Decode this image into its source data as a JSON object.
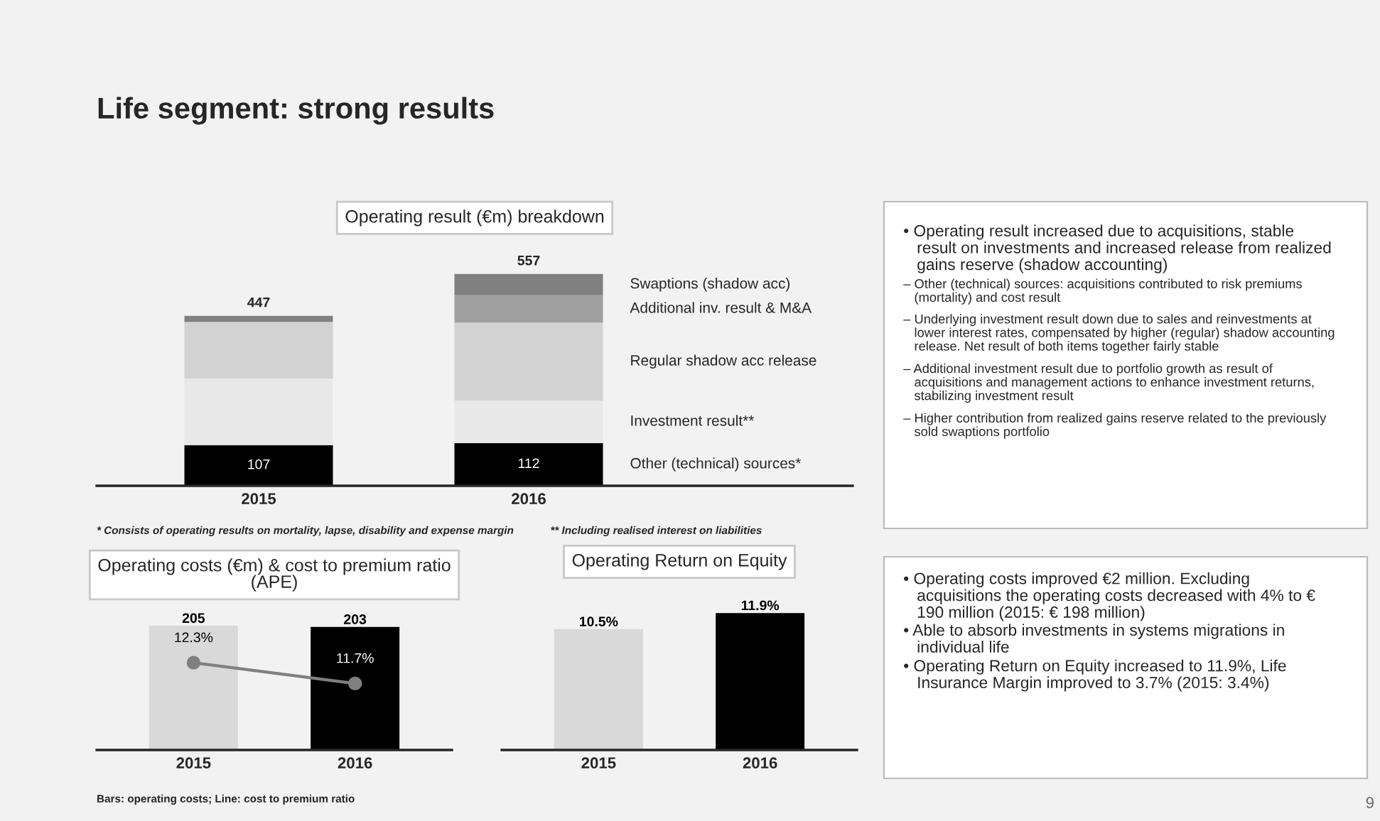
{
  "chart_data": [
    {
      "type": "other",
      "title": "Life segment: strong results",
      "annotations": [
        "9"
      ]
    },
    {
      "type": "bar",
      "stacked": true,
      "title": "Operating result (€m) breakdown",
      "categories": [
        "2015",
        "2016"
      ],
      "tick_labels": "x",
      "series": [
        {
          "name": "Other (technical) sources*",
          "color": "#000000",
          "values": [
            107,
            112
          ],
          "value_labels": [
            "107",
            "112"
          ]
        },
        {
          "name": "Investment result**",
          "color": "#e8e8e8",
          "values": [
            175,
            112
          ]
        },
        {
          "name": "Regular shadow acc release",
          "color": "#d2d2d2",
          "values": [
            149,
            205
          ]
        },
        {
          "name": "Additional inv. result & M&A",
          "color": "#a0a0a0",
          "values": [
            null,
            72
          ]
        },
        {
          "name": "Swaptions (shadow acc)",
          "color": "#808080",
          "values": [
            16,
            56
          ]
        }
      ],
      "totals": [
        "447",
        "557"
      ],
      "annotations": [
        "* Consists of operating results on mortality, lapse, disability and expense margin",
        "** Including realised interest on liabilities"
      ]
    },
    {
      "type": "bar",
      "title": "Operating costs (€m) & cost to premium ratio (APE)",
      "categories": [
        "2015",
        "2016"
      ],
      "tick_labels": "x",
      "series": [
        {
          "colors": [
            "#d9d9d9",
            "#000000"
          ],
          "values": [
            205,
            203
          ],
          "value_labels": [
            "205",
            "203"
          ]
        },
        {
          "type": "line",
          "axis": "y2",
          "color": "#808080",
          "marker": "circle",
          "values": [
            12.3,
            11.7
          ],
          "value_labels": [
            "12.3%",
            "11.7%"
          ]
        }
      ],
      "annotations": [
        "Bars: operating costs; Line: cost to premium ratio"
      ]
    },
    {
      "type": "bar",
      "title": "Operating Return on Equity",
      "categories": [
        "2015",
        "2016"
      ],
      "tick_labels": "x",
      "series": [
        {
          "colors": [
            "#d9d9d9",
            "#000000"
          ],
          "values": [
            10.5,
            11.9
          ],
          "value_labels": [
            "10.5%",
            "11.9%"
          ]
        }
      ]
    },
    {
      "type": "other",
      "annotations": [
        "• Operating result increased due to acquisitions, stable result on investments and increased release from realized gains reserve (shadow accounting)",
        "– Other (technical) sources: acquisitions contributed to risk premiums (mortality) and cost result",
        "– Underlying investment result down due to sales and reinvestments at lower interest rates, compensated by higher (regular) shadow accounting release. Net result of both items together fairly stable",
        "– Additional investment result due to portfolio growth as result of acquisitions and management actions to enhance investment returns, stabilizing investment result",
        "– Higher contribution from realized gains reserve related to the previously sold swaptions portfolio"
      ]
    },
    {
      "type": "other",
      "annotations": [
        "• Operating costs improved €2 million. Excluding acquisitions the operating costs decreased with 4% to € 190 million (2015: € 198 million)",
        "• Able to absorb investments in systems migrations in individual life",
        "• Operating Return on Equity increased to 11.9%, Life Insurance Margin improved to 3.7% (2015: 3.4%)"
      ]
    }
  ]
}
